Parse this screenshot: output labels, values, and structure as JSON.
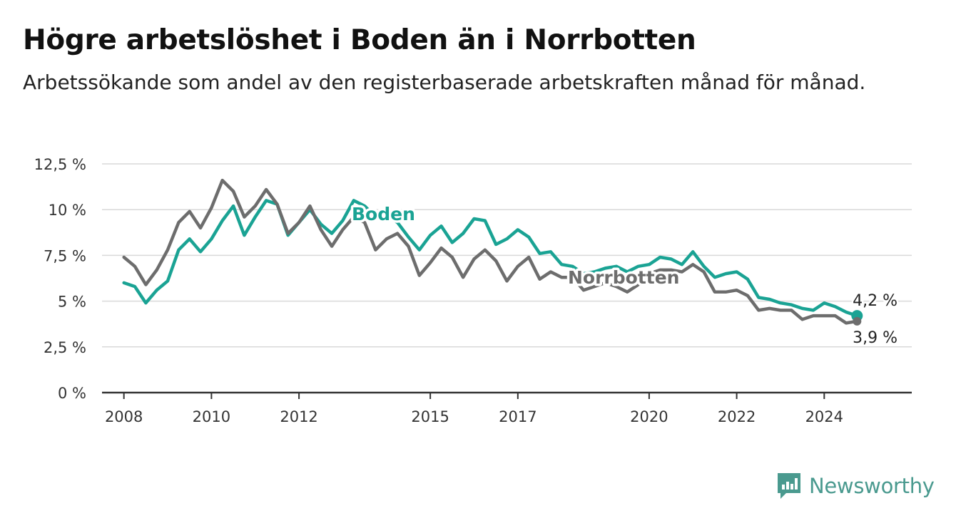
{
  "header": {
    "title": "Högre arbetslöshet i Boden än i Norrbotten",
    "subtitle": "Arbetssökande som andel av den registerbaserade arbetskraften månad för månad."
  },
  "brand": {
    "name": "Newsworthy",
    "icon": "newsworthy-logo-icon",
    "color": "#4a9a8f"
  },
  "chart_data": {
    "type": "line",
    "title": "Högre arbetslöshet i Boden än i Norrbotten",
    "subtitle": "Arbetssökande som andel av den registerbaserade arbetskraften månad för månad.",
    "xlabel": "",
    "ylabel": "",
    "ylim": [
      0,
      12.5
    ],
    "yticks": [
      0,
      2.5,
      5,
      7.5,
      10,
      12.5
    ],
    "ytick_labels": [
      "0 %",
      "2,5 %",
      "5 %",
      "7,5 %",
      "10 %",
      "12,5 %"
    ],
    "xticks": [
      2008,
      2010,
      2012,
      2015,
      2017,
      2020,
      2022,
      2024
    ],
    "xtick_labels": [
      "2008",
      "2010",
      "2012",
      "2015",
      "2017",
      "2020",
      "2022",
      "2024"
    ],
    "grid": "horizontal",
    "x": [
      2008.0,
      2008.25,
      2008.5,
      2008.75,
      2009.0,
      2009.25,
      2009.5,
      2009.75,
      2010.0,
      2010.25,
      2010.5,
      2010.75,
      2011.0,
      2011.25,
      2011.5,
      2011.75,
      2012.0,
      2012.25,
      2012.5,
      2012.75,
      2013.0,
      2013.25,
      2013.5,
      2013.75,
      2014.0,
      2014.25,
      2014.5,
      2014.75,
      2015.0,
      2015.25,
      2015.5,
      2015.75,
      2016.0,
      2016.25,
      2016.5,
      2016.75,
      2017.0,
      2017.25,
      2017.5,
      2017.75,
      2018.0,
      2018.25,
      2018.5,
      2018.75,
      2019.0,
      2019.25,
      2019.5,
      2019.75,
      2020.0,
      2020.25,
      2020.5,
      2020.75,
      2021.0,
      2021.25,
      2021.5,
      2021.75,
      2022.0,
      2022.25,
      2022.5,
      2022.75,
      2023.0,
      2023.25,
      2023.5,
      2023.75,
      2024.0,
      2024.25,
      2024.5,
      2024.75
    ],
    "series": [
      {
        "name": "Boden",
        "color": "#1aa394",
        "values": [
          6.0,
          5.8,
          4.9,
          5.6,
          6.1,
          7.8,
          8.4,
          7.7,
          8.4,
          9.4,
          10.2,
          8.6,
          9.6,
          10.5,
          10.3,
          8.6,
          9.3,
          10.0,
          9.2,
          8.7,
          9.4,
          10.5,
          10.2,
          9.6,
          9.7,
          9.3,
          8.5,
          7.8,
          8.6,
          9.1,
          8.2,
          8.7,
          9.5,
          9.4,
          8.1,
          8.4,
          8.9,
          8.5,
          7.6,
          7.7,
          7.0,
          6.9,
          6.5,
          6.6,
          6.8,
          6.9,
          6.6,
          6.9,
          7.0,
          7.4,
          7.3,
          7.0,
          7.7,
          6.9,
          6.3,
          6.5,
          6.6,
          6.2,
          5.2,
          5.1,
          4.9,
          4.8,
          4.6,
          4.5,
          4.9,
          4.7,
          4.4,
          4.2
        ]
      },
      {
        "name": "Norrbotten",
        "color": "#6d6d6d",
        "values": [
          7.4,
          6.9,
          5.9,
          6.7,
          7.8,
          9.3,
          9.9,
          9.0,
          10.1,
          11.6,
          11.0,
          9.6,
          10.2,
          11.1,
          10.3,
          8.7,
          9.3,
          10.2,
          8.9,
          8.0,
          8.9,
          9.6,
          9.3,
          7.8,
          8.4,
          8.7,
          8.0,
          6.4,
          7.1,
          7.9,
          7.4,
          6.3,
          7.3,
          7.8,
          7.2,
          6.1,
          6.9,
          7.4,
          6.2,
          6.6,
          6.3,
          6.3,
          5.6,
          5.8,
          6.0,
          5.8,
          5.5,
          5.9,
          6.5,
          6.7,
          6.7,
          6.6,
          7.0,
          6.6,
          5.5,
          5.5,
          5.6,
          5.3,
          4.5,
          4.6,
          4.5,
          4.5,
          4.0,
          4.2,
          4.2,
          4.2,
          3.8,
          3.9
        ]
      }
    ],
    "annotations": [
      {
        "series": "Boden",
        "label": "Boden"
      },
      {
        "series": "Norrbotten",
        "label": "Norrbotten"
      },
      {
        "series": "Boden",
        "label": "4,2 %",
        "value": 4.2
      },
      {
        "series": "Norrbotten",
        "label": "3,9 %",
        "value": 3.9
      }
    ]
  }
}
